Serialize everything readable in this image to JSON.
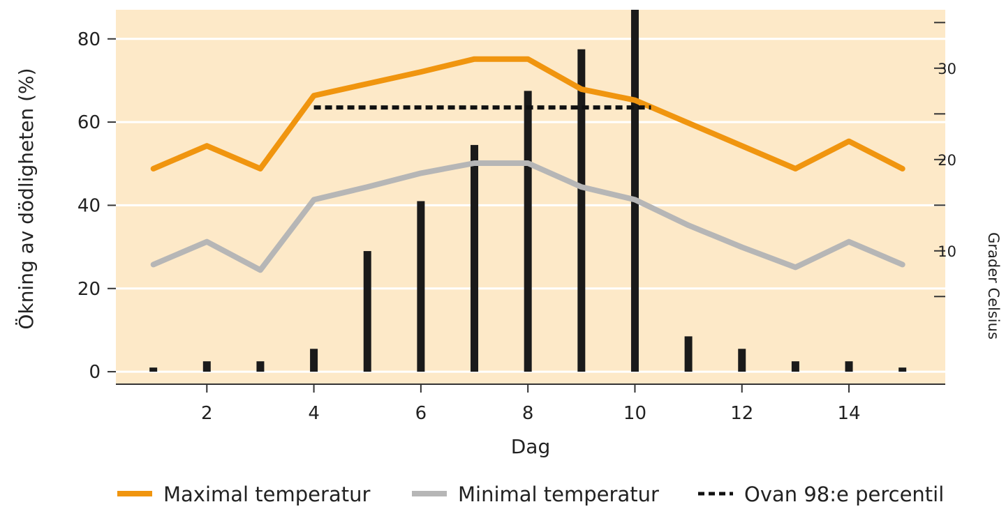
{
  "chart_data": {
    "type": "bar",
    "xlabel": "Dag",
    "ylabel": "Ökning av dödligheten (%)",
    "ylim": [
      -3,
      87
    ],
    "y_ticks": [
      0,
      20,
      40,
      60,
      80
    ],
    "xlim": [
      0.3,
      15.8
    ],
    "x_ticks": [
      2,
      4,
      6,
      8,
      10,
      12,
      14
    ],
    "x": [
      1,
      2,
      3,
      4,
      5,
      6,
      7,
      8,
      9,
      10,
      11,
      12,
      13,
      14,
      15
    ],
    "grid": true,
    "legend_position": "bottom",
    "bars": {
      "name": "Ökning av dödligheten (%)",
      "values": [
        1,
        2.5,
        2.5,
        5.5,
        29,
        41,
        54.5,
        67.5,
        77.5,
        87,
        8.5,
        5.5,
        2.5,
        2.5,
        1
      ]
    },
    "secondary_axis": {
      "label": "Grader Celsius",
      "ticks": [
        10,
        20,
        30
      ],
      "range": [
        -4.6,
        36.4
      ]
    },
    "series": [
      {
        "name": "Maximal temperatur",
        "axis": "secondary",
        "color": "#f0950f",
        "values": [
          19,
          21.5,
          19,
          27,
          28.3,
          29.6,
          31,
          31,
          27.7,
          26.5,
          24,
          21.5,
          19,
          22,
          19
        ]
      },
      {
        "name": "Minimal temperatur",
        "axis": "secondary",
        "color": "#b6b6b6",
        "values": [
          8.5,
          11,
          7.9,
          15.6,
          17,
          18.5,
          19.6,
          19.6,
          17,
          15.6,
          12.8,
          10.4,
          8.2,
          11,
          8.5
        ]
      },
      {
        "name": "Ovan 98:e percentil",
        "axis": "secondary",
        "style": "dashed",
        "color": "#111111",
        "x_range": [
          4,
          10.3
        ],
        "value": 25.7
      }
    ],
    "colors": {
      "plot_background": "#fde9c8",
      "grid": "#ffffff",
      "bars": "#1a1a1a"
    }
  }
}
